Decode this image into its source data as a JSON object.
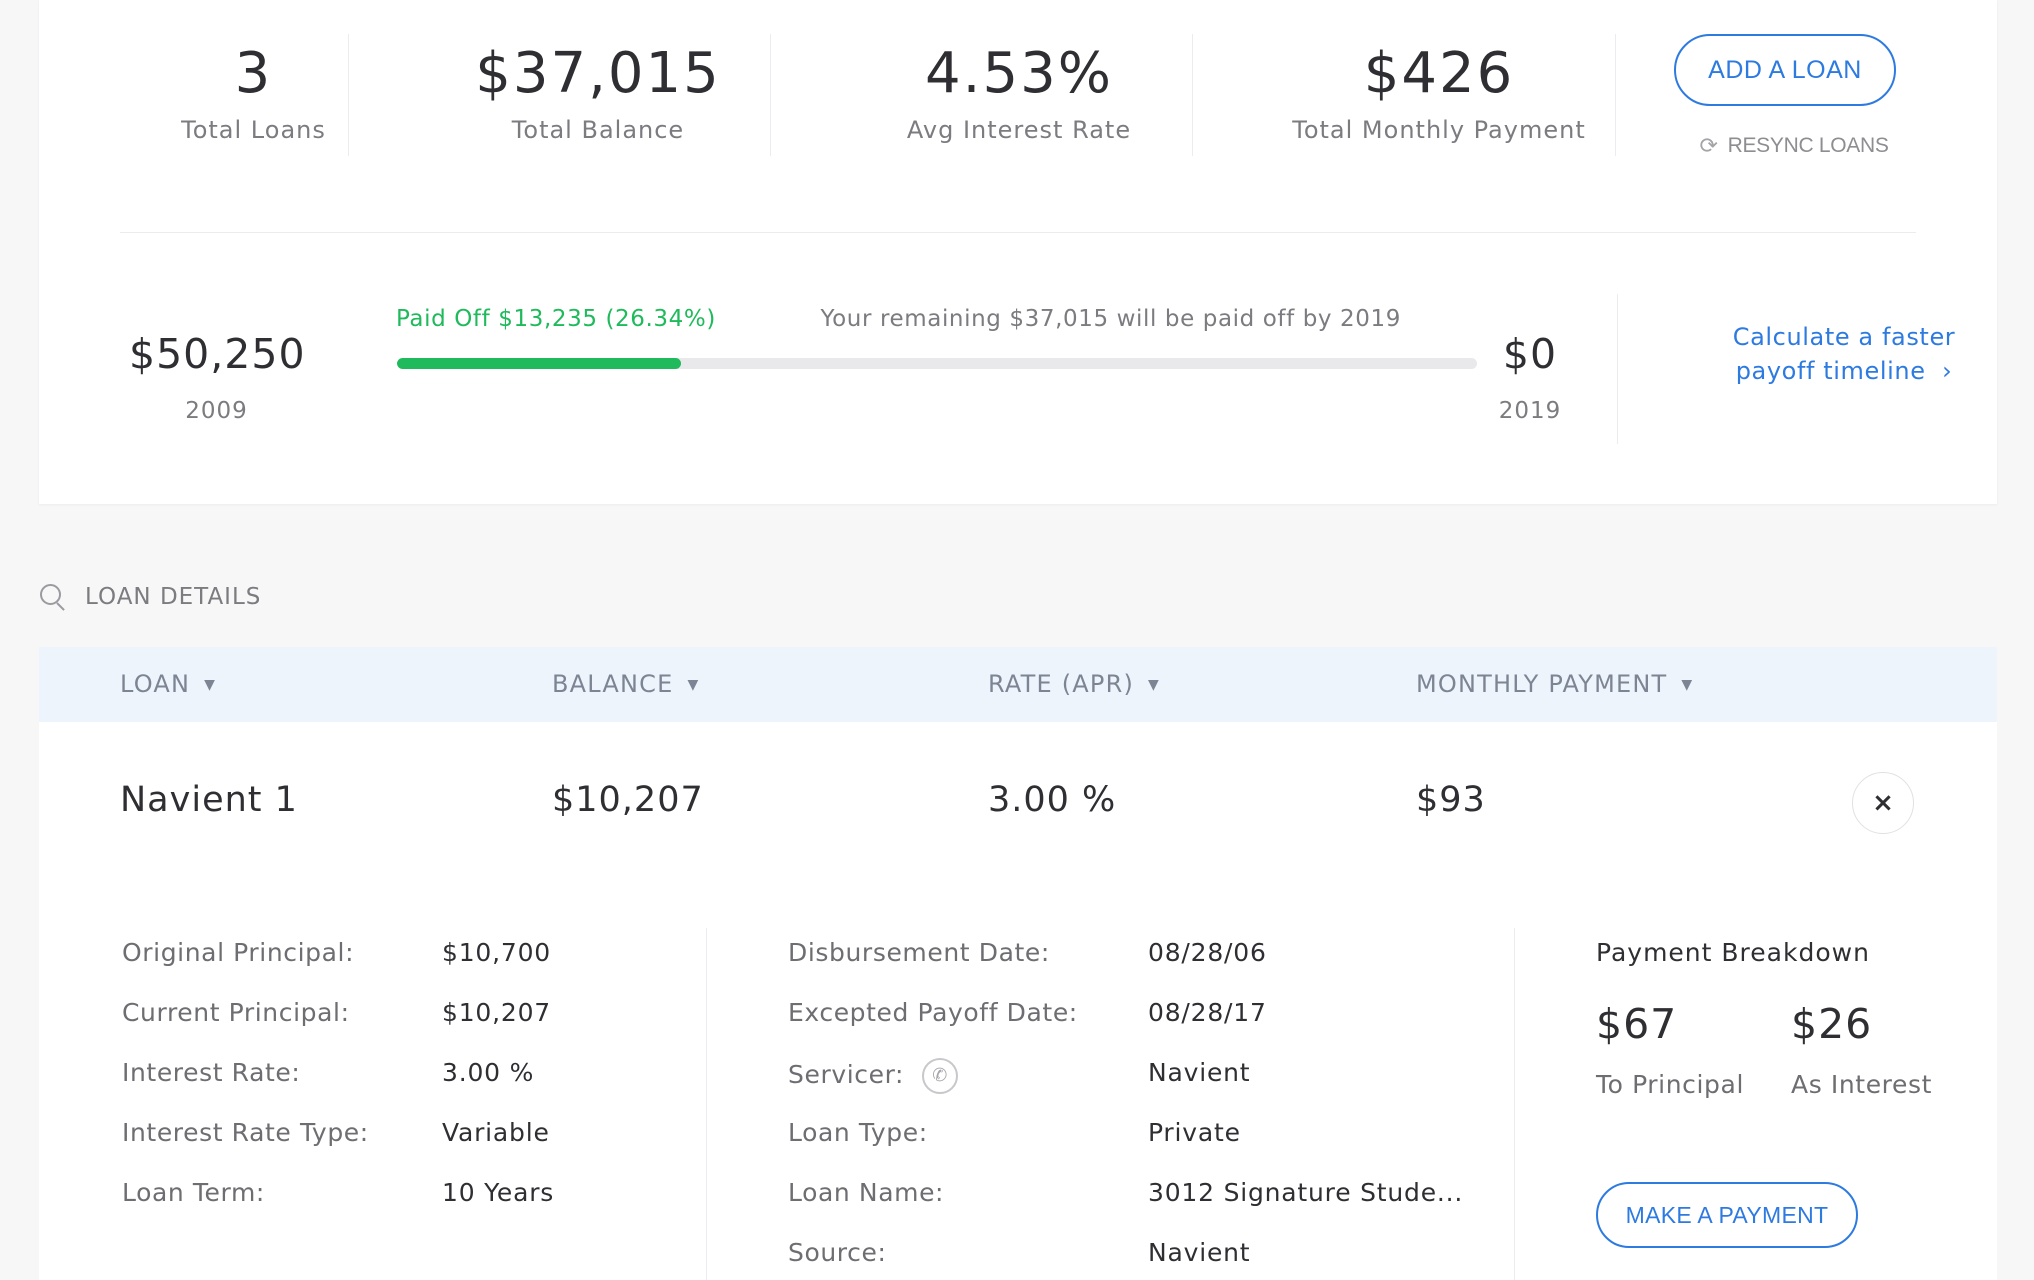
{
  "summary": {
    "stats": [
      {
        "value": "3",
        "label": "Total Loans"
      },
      {
        "value": "$37,015",
        "label": "Total Balance"
      },
      {
        "value": "4.53%",
        "label": "Avg Interest Rate"
      },
      {
        "value": "$426",
        "label": "Total Monthly Payment"
      }
    ],
    "add_loan_label": "ADD A LOAN",
    "resync_label": "RESYNC LOANS",
    "resync_icon": "refresh-icon"
  },
  "payoff": {
    "start_balance": "$50,250",
    "start_year": "2009",
    "end_balance": "$0",
    "end_year": "2019",
    "paid_off_text": "Paid Off $13,235 (26.34%)",
    "remaining_text": "Your remaining $37,015 will be paid off by 2019",
    "progress_fraction": 0.2634,
    "progress_color": "#1fba5c",
    "faster_link_line1": "Calculate a faster",
    "faster_link_line2": "payoff timeline",
    "faster_link_chevron": "›"
  },
  "loan_details": {
    "title": "LOAN DETAILS",
    "icon": "search-icon",
    "columns": [
      {
        "label": "LOAN",
        "caret": "▼"
      },
      {
        "label": "BALANCE",
        "caret": "▼"
      },
      {
        "label": "RATE (APR)",
        "caret": "▼"
      },
      {
        "label": "MONTHLY PAYMENT",
        "caret": "▼"
      }
    ],
    "loan": {
      "name": "Navient 1",
      "balance": "$10,207",
      "rate": "3.00 %",
      "monthly_payment": "$93",
      "close_glyph": "×",
      "left_details": [
        {
          "label": "Original Principal:",
          "value": "$10,700"
        },
        {
          "label": "Current Principal:",
          "value": "$10,207"
        },
        {
          "label": "Interest Rate:",
          "value": "3.00 %"
        },
        {
          "label": "Interest Rate Type:",
          "value": "Variable"
        },
        {
          "label": "Loan Term:",
          "value": "10 Years"
        }
      ],
      "mid_details": [
        {
          "label": "Disbursement Date:",
          "value": "08/28/06"
        },
        {
          "label": "Excepted Payoff Date:",
          "value": "08/28/17"
        },
        {
          "label": "Servicer:",
          "value": "Navient",
          "icon": "phone-icon"
        },
        {
          "label": "Loan Type:",
          "value": "Private"
        },
        {
          "label": "Loan Name:",
          "value": "3012 Signature Stude..."
        },
        {
          "label": "Source:",
          "value": "Navient"
        }
      ],
      "payment_breakdown": {
        "title": "Payment Breakdown",
        "to_principal_amount": "$67",
        "to_principal_label": "To Principal",
        "as_interest_amount": "$26",
        "as_interest_label": "As Interest",
        "make_payment_label": "MAKE A PAYMENT"
      }
    }
  }
}
